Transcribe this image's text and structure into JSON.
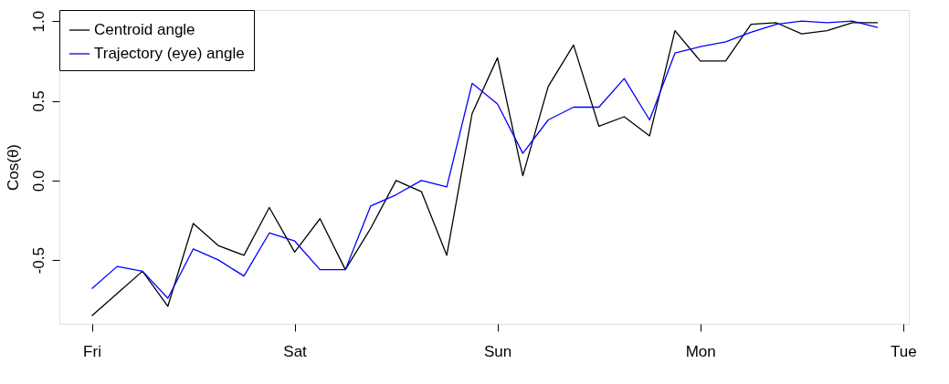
{
  "chart_data": {
    "type": "line",
    "ylabel": "Cos(θ)",
    "categories": [
      "Fri",
      null,
      null,
      null,
      null,
      null,
      null,
      null,
      "Sat",
      null,
      null,
      null,
      null,
      null,
      null,
      null,
      "Sun",
      null,
      null,
      null,
      null,
      null,
      null,
      null,
      "Mon",
      null,
      null,
      null,
      null,
      null,
      null,
      null,
      "Tue"
    ],
    "series": [
      {
        "name": "Centroid angle",
        "color": "#000000",
        "values": [
          -0.85,
          -0.71,
          -0.57,
          -0.79,
          -0.27,
          -0.41,
          -0.47,
          -0.17,
          -0.45,
          -0.24,
          -0.56,
          -0.3,
          0.0,
          -0.07,
          -0.47,
          0.42,
          0.77,
          0.03,
          0.59,
          0.85,
          0.34,
          0.4,
          0.28,
          0.94,
          0.75,
          0.75,
          0.98,
          0.99,
          0.92,
          0.94,
          0.99,
          0.99,
          null
        ]
      },
      {
        "name": "Trajectory (eye) angle",
        "color": "#0000ff",
        "values": [
          -0.68,
          -0.54,
          -0.57,
          -0.74,
          -0.43,
          -0.5,
          -0.6,
          -0.33,
          -0.38,
          -0.56,
          -0.56,
          -0.16,
          -0.09,
          0.0,
          -0.04,
          0.61,
          0.48,
          0.17,
          0.38,
          0.46,
          0.46,
          0.64,
          0.38,
          0.8,
          0.84,
          0.87,
          0.93,
          0.98,
          1.0,
          0.99,
          1.0,
          0.96,
          null
        ]
      }
    ],
    "ylim": [
      -0.9,
      1.07
    ],
    "yticks": [
      {
        "value": -0.5,
        "label": "-0.5"
      },
      {
        "value": 0,
        "label": "0.0"
      },
      {
        "value": 0.5,
        "label": "0.5"
      },
      {
        "value": 1,
        "label": "1.0"
      }
    ],
    "grid": false,
    "legend": "top left",
    "marker": "none",
    "line_style": "solid"
  }
}
